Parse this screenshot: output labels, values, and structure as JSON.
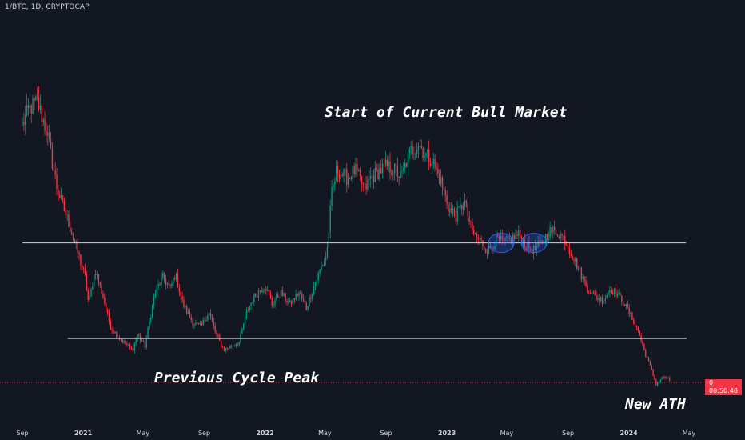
{
  "header": {
    "symbol_label": "1/BTC, 1D, CRYPTOCAP"
  },
  "annotations": {
    "bull_start": "Start of Current Bull Market",
    "prev_peak": "Previous Cycle Peak",
    "new_ath": "New ATH"
  },
  "price_tag": {
    "value": "0",
    "countdown": "08:50:48"
  },
  "colors": {
    "background": "#131722",
    "up": "#089981",
    "down": "#f23645",
    "level_line": "#d1d4dc",
    "circle_stroke": "#2962ff",
    "text": "#d1d4dc"
  },
  "chart_data": {
    "type": "candlestick",
    "title": "",
    "xlabel": "",
    "ylabel": "",
    "x_range": [
      "2020-09-01",
      "2024-05-01"
    ],
    "x_ticks": [
      {
        "label": "Sep",
        "date": "2020-09-01",
        "bold": false
      },
      {
        "label": "2021",
        "date": "2021-01-01",
        "bold": true
      },
      {
        "label": "May",
        "date": "2021-05-01",
        "bold": false
      },
      {
        "label": "Sep",
        "date": "2021-09-01",
        "bold": false
      },
      {
        "label": "2022",
        "date": "2022-01-01",
        "bold": true
      },
      {
        "label": "May",
        "date": "2022-05-01",
        "bold": false
      },
      {
        "label": "Sep",
        "date": "2022-09-01",
        "bold": false
      },
      {
        "label": "2023",
        "date": "2023-01-01",
        "bold": true
      },
      {
        "label": "May",
        "date": "2023-05-01",
        "bold": false
      },
      {
        "label": "Sep",
        "date": "2023-09-01",
        "bold": false
      },
      {
        "label": "2024",
        "date": "2024-01-01",
        "bold": true
      },
      {
        "label": "May",
        "date": "2024-05-01",
        "bold": false
      }
    ],
    "y_range": [
      0.1,
      1.0
    ],
    "y_axis_labels_visible": false,
    "grid": false,
    "price_path": [
      [
        "2020-09-01",
        0.8
      ],
      [
        "2020-09-15",
        0.84
      ],
      [
        "2020-10-01",
        0.86
      ],
      [
        "2020-10-20",
        0.78
      ],
      [
        "2020-11-10",
        0.63
      ],
      [
        "2020-12-01",
        0.55
      ],
      [
        "2020-12-20",
        0.47
      ],
      [
        "2021-01-05",
        0.4
      ],
      [
        "2021-01-12",
        0.33
      ],
      [
        "2021-01-25",
        0.42
      ],
      [
        "2021-02-10",
        0.35
      ],
      [
        "2021-02-25",
        0.27
      ],
      [
        "2021-03-15",
        0.24
      ],
      [
        "2021-04-10",
        0.21
      ],
      [
        "2021-04-20",
        0.25
      ],
      [
        "2021-05-05",
        0.22
      ],
      [
        "2021-05-25",
        0.36
      ],
      [
        "2021-06-10",
        0.4
      ],
      [
        "2021-06-25",
        0.37
      ],
      [
        "2021-07-05",
        0.41
      ],
      [
        "2021-07-20",
        0.33
      ],
      [
        "2021-08-10",
        0.28
      ],
      [
        "2021-08-25",
        0.27
      ],
      [
        "2021-09-10",
        0.31
      ],
      [
        "2021-09-25",
        0.25
      ],
      [
        "2021-10-10",
        0.21
      ],
      [
        "2021-10-25",
        0.22
      ],
      [
        "2021-11-10",
        0.23
      ],
      [
        "2021-11-25",
        0.31
      ],
      [
        "2021-12-10",
        0.35
      ],
      [
        "2022-01-01",
        0.38
      ],
      [
        "2022-01-15",
        0.33
      ],
      [
        "2022-02-01",
        0.36
      ],
      [
        "2022-02-20",
        0.33
      ],
      [
        "2022-03-10",
        0.36
      ],
      [
        "2022-03-25",
        0.32
      ],
      [
        "2022-04-10",
        0.38
      ],
      [
        "2022-04-25",
        0.43
      ],
      [
        "2022-05-05",
        0.46
      ],
      [
        "2022-05-15",
        0.62
      ],
      [
        "2022-05-25",
        0.68
      ],
      [
        "2022-06-15",
        0.66
      ],
      [
        "2022-07-01",
        0.68
      ],
      [
        "2022-07-20",
        0.63
      ],
      [
        "2022-08-01",
        0.66
      ],
      [
        "2022-08-20",
        0.68
      ],
      [
        "2022-09-01",
        0.69
      ],
      [
        "2022-09-20",
        0.68
      ],
      [
        "2022-10-01",
        0.66
      ],
      [
        "2022-10-20",
        0.73
      ],
      [
        "2022-11-05",
        0.75
      ],
      [
        "2022-11-20",
        0.72
      ],
      [
        "2022-12-01",
        0.71
      ],
      [
        "2022-12-20",
        0.65
      ],
      [
        "2023-01-05",
        0.58
      ],
      [
        "2023-01-20",
        0.56
      ],
      [
        "2023-02-05",
        0.6
      ],
      [
        "2023-02-20",
        0.52
      ],
      [
        "2023-03-05",
        0.5
      ],
      [
        "2023-03-25",
        0.47
      ],
      [
        "2023-04-10",
        0.5
      ],
      [
        "2023-04-25",
        0.49
      ],
      [
        "2023-05-10",
        0.5
      ],
      [
        "2023-05-25",
        0.51
      ],
      [
        "2023-06-10",
        0.48
      ],
      [
        "2023-06-25",
        0.47
      ],
      [
        "2023-07-10",
        0.49
      ],
      [
        "2023-07-25",
        0.52
      ],
      [
        "2023-08-10",
        0.52
      ],
      [
        "2023-08-25",
        0.5
      ],
      [
        "2023-09-05",
        0.47
      ],
      [
        "2023-09-20",
        0.43
      ],
      [
        "2023-10-10",
        0.37
      ],
      [
        "2023-10-25",
        0.35
      ],
      [
        "2023-11-10",
        0.34
      ],
      [
        "2023-11-25",
        0.37
      ],
      [
        "2023-12-05",
        0.36
      ],
      [
        "2023-12-20",
        0.34
      ],
      [
        "2024-01-05",
        0.3
      ],
      [
        "2024-01-20",
        0.26
      ],
      [
        "2024-02-01",
        0.21
      ],
      [
        "2024-02-15",
        0.16
      ],
      [
        "2024-02-25",
        0.12
      ],
      [
        "2024-03-10",
        0.14
      ],
      [
        "2024-03-25",
        0.13
      ]
    ],
    "horizontal_levels": [
      {
        "value": 0.49,
        "from": "2020-09-01",
        "to": "2024-04-25"
      },
      {
        "value": 0.24,
        "from": "2020-12-01",
        "to": "2024-04-26"
      }
    ],
    "circled_regions": [
      {
        "date": "2023-04-20",
        "value": 0.49
      },
      {
        "date": "2023-06-25",
        "value": 0.49
      }
    ],
    "current_value_line": 0.125
  }
}
